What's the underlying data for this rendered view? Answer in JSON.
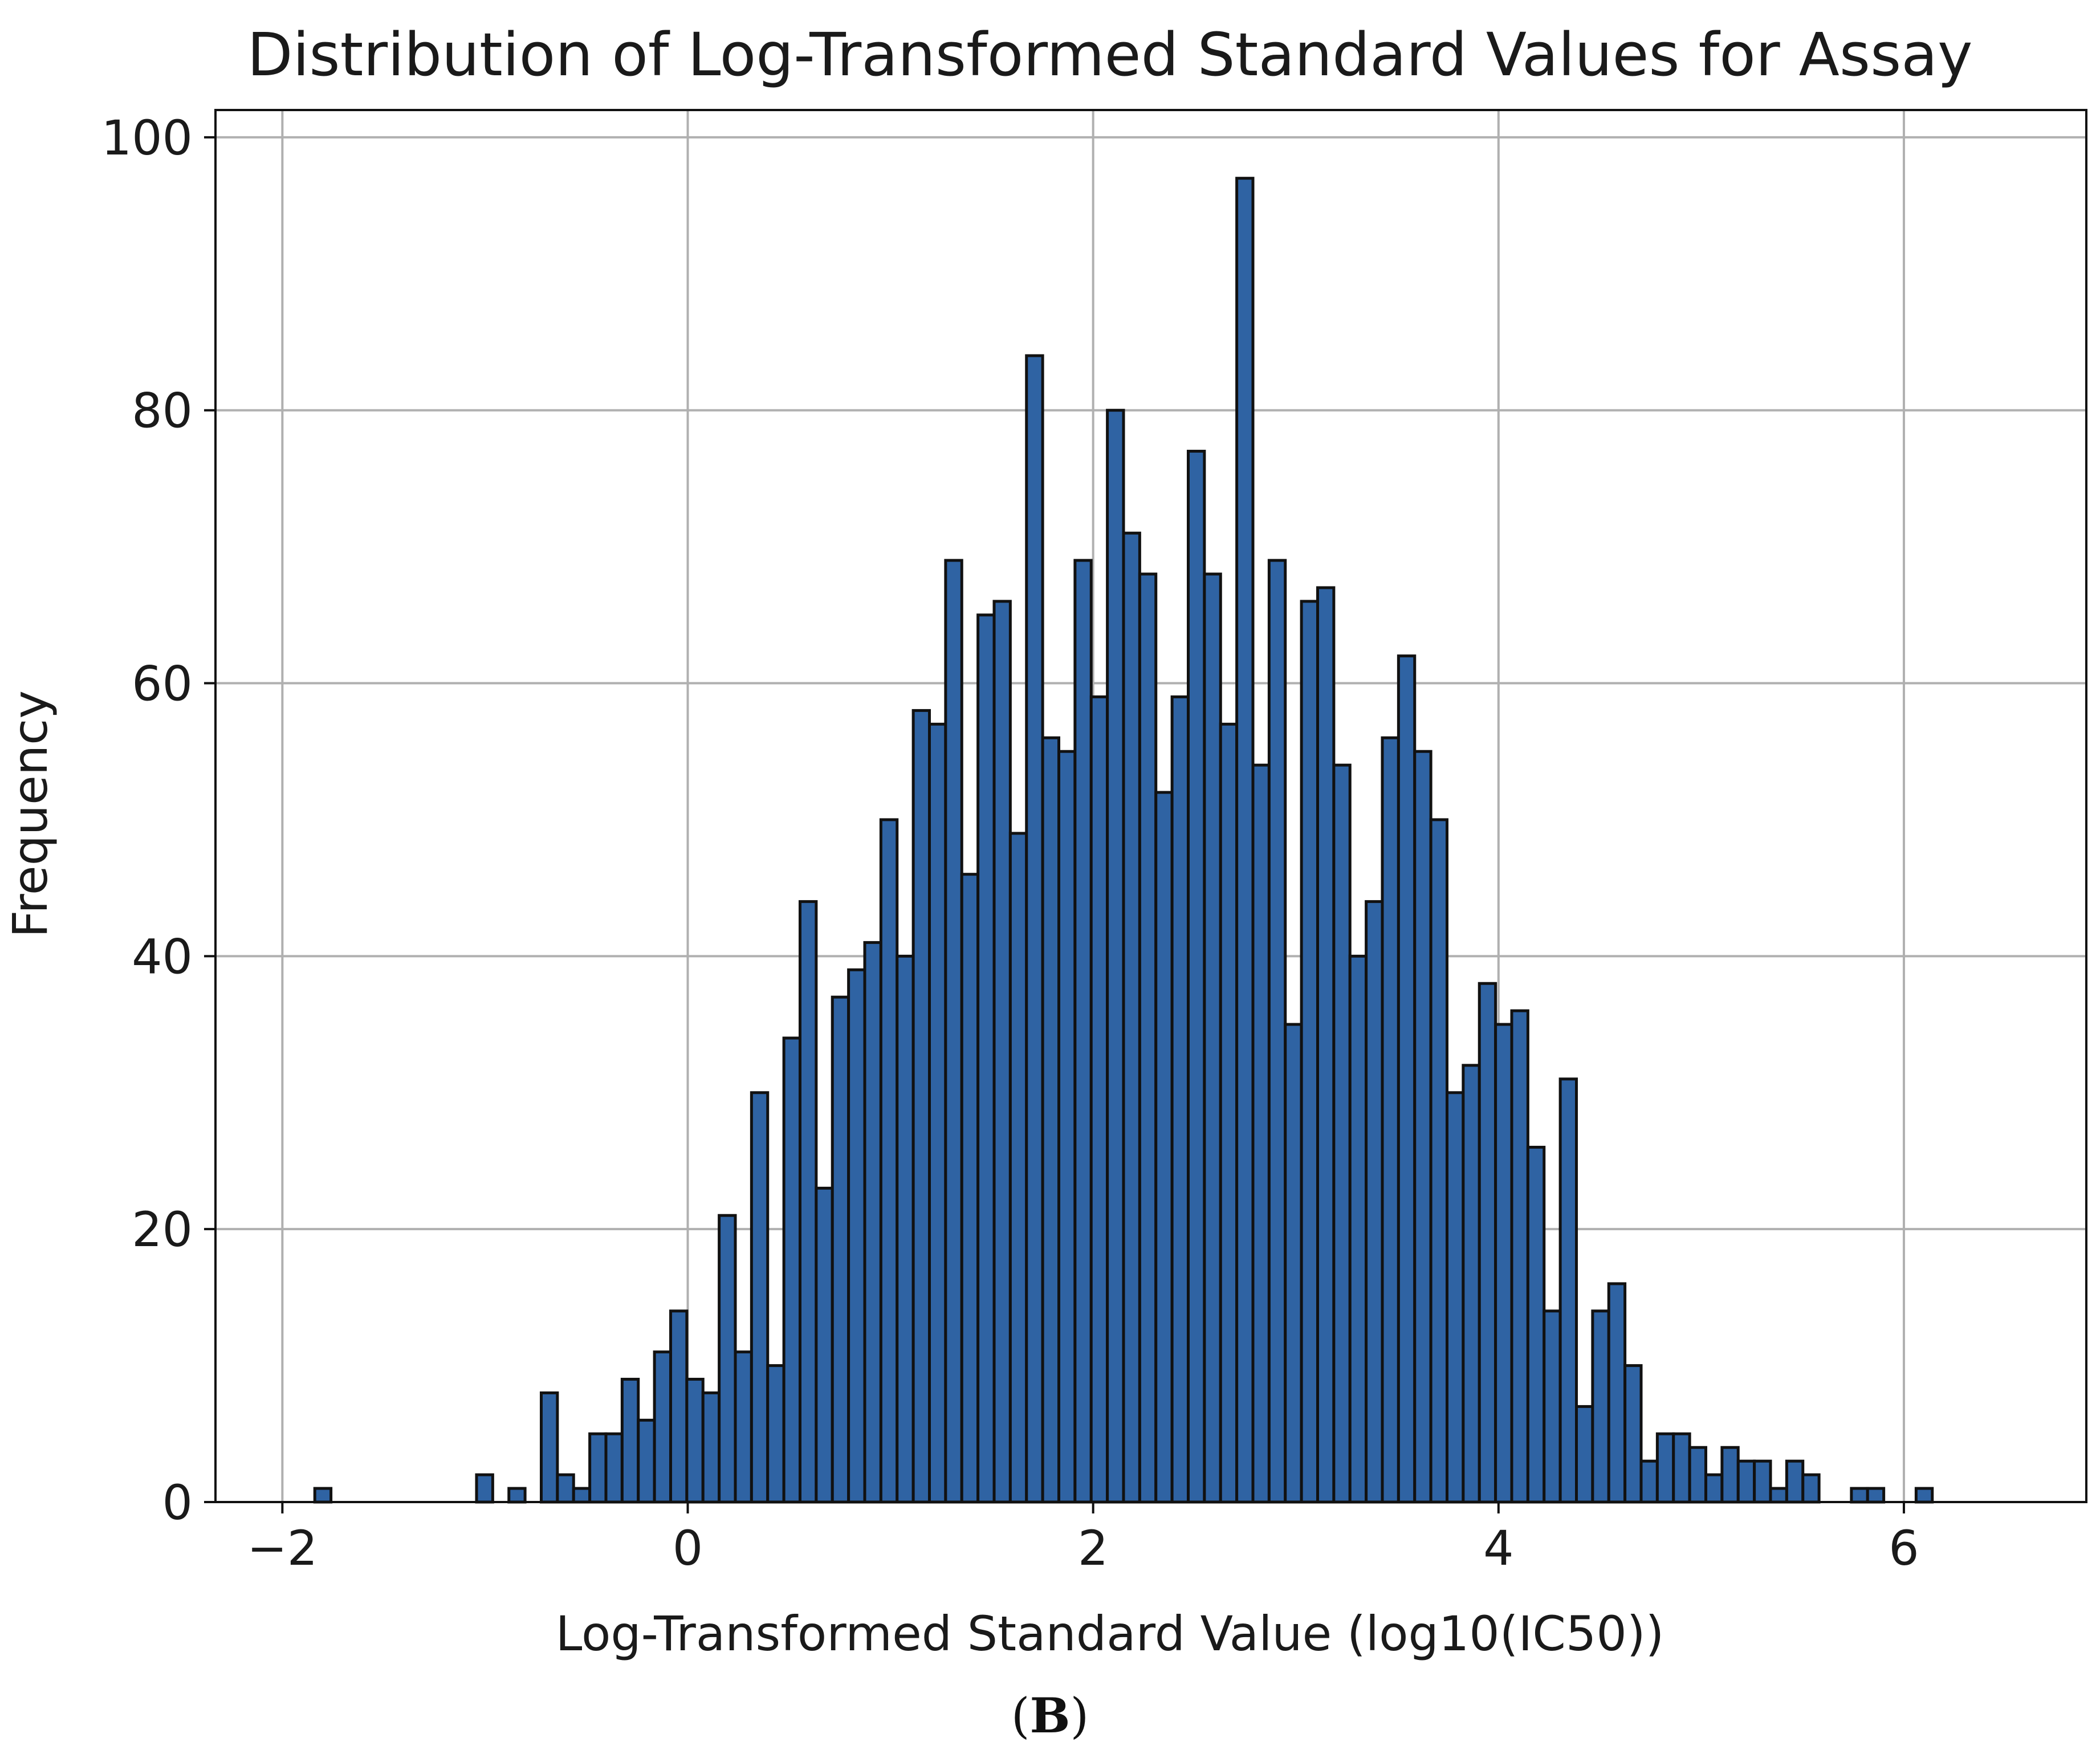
{
  "figure": {
    "panel_label_open": "(",
    "panel_label_letter": "B",
    "panel_label_close": ")"
  },
  "colors": {
    "bar_fill": "#2f63a3",
    "bar_edge": "#111111",
    "grid": "#b0b0b0",
    "axis": "#111111"
  },
  "chart_data": {
    "type": "bar",
    "title": "Distribution of Log-Transformed Standard Values for Assay",
    "xlabel": "Log-Transformed Standard Value (log10(IC50))",
    "ylabel": "Frequency",
    "xlim": [
      -2.33,
      6.9
    ],
    "ylim": [
      0,
      102
    ],
    "xticks": [
      -2,
      0,
      2,
      4,
      6
    ],
    "xtick_labels": [
      "−2",
      "0",
      "2",
      "4",
      "6"
    ],
    "yticks": [
      0,
      20,
      40,
      60,
      80,
      100
    ],
    "ytick_labels": [
      "0",
      "20",
      "40",
      "60",
      "80",
      "100"
    ],
    "grid": true,
    "bin_start": -1.84,
    "bin_width": 0.0798,
    "values": [
      1,
      0,
      0,
      0,
      0,
      0,
      0,
      0,
      0,
      0,
      2,
      0,
      1,
      0,
      8,
      2,
      1,
      5,
      5,
      9,
      6,
      11,
      14,
      9,
      8,
      21,
      11,
      30,
      10,
      34,
      44,
      23,
      37,
      39,
      41,
      50,
      40,
      58,
      57,
      69,
      46,
      65,
      66,
      49,
      84,
      56,
      55,
      69,
      59,
      80,
      71,
      68,
      52,
      59,
      77,
      68,
      57,
      97,
      54,
      69,
      35,
      66,
      67,
      54,
      40,
      44,
      56,
      62,
      55,
      50,
      30,
      32,
      38,
      35,
      36,
      26,
      14,
      31,
      7,
      14,
      16,
      10,
      3,
      5,
      5,
      4,
      2,
      4,
      3,
      3,
      1,
      3,
      2,
      0,
      0,
      1,
      1,
      0,
      0,
      1
    ]
  }
}
